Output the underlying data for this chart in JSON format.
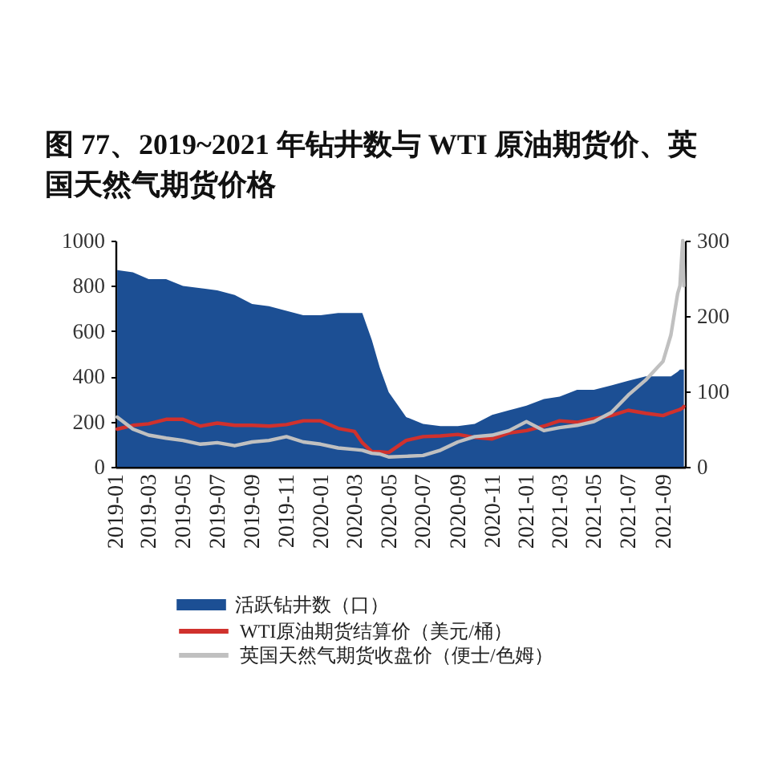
{
  "chart_data": {
    "type": "line",
    "title": "图 77、2019~2021 年钻井数与 WTI 原油期货价、英国天然气期货价格",
    "x": [
      "2019-01-04",
      "2019-02-01",
      "2019-03-01",
      "2019-04-01",
      "2019-05-01",
      "2019-06-01",
      "2019-07-01",
      "2019-08-01",
      "2019-09-01",
      "2019-10-01",
      "2019-11-01",
      "2019-12-01",
      "2020-01-01",
      "2020-02-01",
      "2020-03-01",
      "2020-03-15",
      "2020-04-01",
      "2020-04-15",
      "2020-05-01",
      "2020-06-01",
      "2020-07-01",
      "2020-08-01",
      "2020-09-01",
      "2020-10-01",
      "2020-11-01",
      "2020-12-01",
      "2021-01-01",
      "2021-02-01",
      "2021-03-01",
      "2021-04-01",
      "2021-05-01",
      "2021-06-01",
      "2021-07-01",
      "2021-08-01",
      "2021-09-01",
      "2021-09-15",
      "2021-09-27",
      "2021-10-01",
      "2021-10-06",
      "2021-10-08"
    ],
    "xlim": [
      "2019-01-01",
      "2021-10-10"
    ],
    "xticks": [
      "2019-01",
      "2019-03",
      "2019-05",
      "2019-07",
      "2019-09",
      "2019-11",
      "2020-01",
      "2020-03",
      "2020-05",
      "2020-07",
      "2020-09",
      "2020-11",
      "2021-01",
      "2021-03",
      "2021-05",
      "2021-07",
      "2021-09"
    ],
    "ylim": [
      0,
      1000
    ],
    "yticks": [
      0,
      200,
      400,
      600,
      800,
      1000
    ],
    "y2lim": [
      0,
      300
    ],
    "y2ticks": [
      0,
      100,
      200,
      300
    ],
    "legend": "bottom",
    "series": [
      {
        "name": "活跃钻井数（口）",
        "type": "area",
        "color": "#1c4f94",
        "values": [
          870,
          860,
          830,
          830,
          800,
          790,
          780,
          760,
          720,
          710,
          690,
          670,
          670,
          680,
          680,
          680,
          560,
          440,
          330,
          220,
          190,
          180,
          180,
          190,
          230,
          250,
          270,
          300,
          310,
          340,
          340,
          360,
          380,
          400,
          400,
          400,
          420,
          430,
          430,
          430
        ]
      },
      {
        "name": "WTI原油期货结算价（美元/桶）",
        "axis": "y2",
        "color": "#d0312d",
        "values": [
          50,
          55,
          57,
          63,
          63,
          54,
          58,
          55,
          55,
          54,
          56,
          61,
          61,
          51,
          47,
          32,
          20,
          20,
          19,
          35,
          40,
          41,
          43,
          39,
          37,
          45,
          48,
          54,
          61,
          59,
          64,
          68,
          75,
          71,
          68,
          72,
          75,
          76,
          78,
          80
        ]
      },
      {
        "name": "英国天然气期货收盘价（便士/色姆）",
        "axis": "y2",
        "color": "#c0c0c0",
        "values": [
          66,
          50,
          42,
          38,
          35,
          30,
          32,
          28,
          33,
          35,
          40,
          33,
          30,
          25,
          23,
          22,
          18,
          17,
          13,
          14,
          15,
          22,
          33,
          40,
          42,
          48,
          60,
          48,
          52,
          55,
          60,
          72,
          95,
          115,
          140,
          175,
          230,
          240,
          300,
          240
        ]
      }
    ]
  }
}
